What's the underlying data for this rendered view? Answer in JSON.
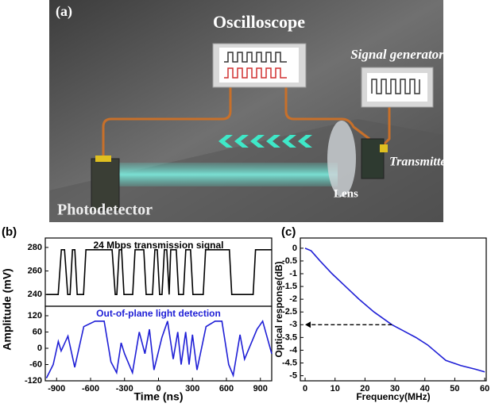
{
  "diagram": {
    "panel": "(a)",
    "labels": {
      "oscilloscope": "Oscilloscope",
      "signal_generator": "Signal generator",
      "transmitter": "Transmitter",
      "lens": "Lens",
      "photodetector": "Photodetector"
    }
  },
  "chart_data": [
    {
      "type": "line",
      "panel": "(b)",
      "xlabel": "Time (ns)",
      "ylabel": "Amplitude (mV)",
      "xlim": [
        -1000,
        1000
      ],
      "xticks": [
        -900,
        -600,
        -300,
        0,
        300,
        600,
        900
      ],
      "subplots": [
        {
          "annotation": "24 Mbps transmission signal",
          "ylim": [
            230,
            288
          ],
          "yticks": [
            240,
            260,
            280
          ],
          "x": [
            -991,
            -886,
            -858,
            -830,
            -802,
            -781,
            -760,
            -739,
            -718,
            -662,
            -641,
            -410,
            -382,
            -368,
            -347,
            -326,
            -305,
            -228,
            -207,
            -130,
            -109,
            -53,
            -32,
            -11,
            10,
            31,
            52,
            73,
            94,
            108,
            157,
            178,
            220,
            241,
            283,
            304,
            395,
            416,
            626,
            647,
            836,
            857,
            997
          ],
          "series": [
            {
              "color": "#000000",
              "values": [
                240,
                240,
                278,
                278,
                240,
                240,
                278,
                278,
                240,
                240,
                278,
                278,
                240,
                240,
                278,
                278,
                240,
                240,
                278,
                278,
                240,
                240,
                278,
                278,
                240,
                240,
                278,
                278,
                240,
                278,
                278,
                240,
                240,
                278,
                278,
                240,
                240,
                278,
                278,
                240,
                240,
                278,
                278
              ]
            }
          ]
        },
        {
          "annotation": "Out-of-plane light detection",
          "ylim": [
            -120,
            155
          ],
          "yticks": [
            -120,
            -60,
            0,
            60,
            120
          ],
          "x": [
            -990,
            -930,
            -885,
            -860,
            -800,
            -740,
            -660,
            -560,
            -480,
            -420,
            -370,
            -330,
            -300,
            -230,
            -170,
            -120,
            -80,
            -40,
            30,
            80,
            130,
            170,
            200,
            240,
            270,
            300,
            340,
            420,
            500,
            560,
            620,
            660,
            720,
            760,
            820,
            870,
            920,
            960,
            1000
          ],
          "series": [
            {
              "color": "#1f1fd6",
              "values": [
                -110,
                -60,
                25,
                -10,
                45,
                -70,
                80,
                100,
                100,
                -50,
                -90,
                20,
                -20,
                -90,
                60,
                -20,
                70,
                -80,
                40,
                100,
                -40,
                60,
                -60,
                60,
                -60,
                50,
                -80,
                80,
                100,
                100,
                -60,
                -100,
                50,
                -40,
                20,
                70,
                100,
                40,
                -20
              ]
            }
          ]
        }
      ]
    },
    {
      "type": "line",
      "panel": "(c)",
      "xlabel": "Frequency(MHz)",
      "ylabel": "Optical response(dB)",
      "xlim": [
        -1.6,
        60.5
      ],
      "xticks": [
        0,
        10,
        20,
        30,
        40,
        50,
        60
      ],
      "ylim": [
        -5.2,
        0.4
      ],
      "yticks": [
        0,
        -0.5,
        -1,
        -1.5,
        -2,
        -2.5,
        -3,
        -3.5,
        -4,
        -4.5,
        -5
      ],
      "x": [
        0,
        2,
        5,
        9,
        13.5,
        18,
        23,
        29,
        37,
        41,
        43,
        47,
        52,
        57,
        60
      ],
      "series": [
        {
          "color": "#1f1fd6",
          "values": [
            0,
            -0.1,
            -0.5,
            -1,
            -1.5,
            -2,
            -2.5,
            -3,
            -3.5,
            -3.8,
            -4,
            -4.4,
            -4.6,
            -4.75,
            -4.85
          ]
        }
      ],
      "reference_arrow": {
        "y": -3,
        "x": [
          29,
          0
        ]
      }
    }
  ]
}
